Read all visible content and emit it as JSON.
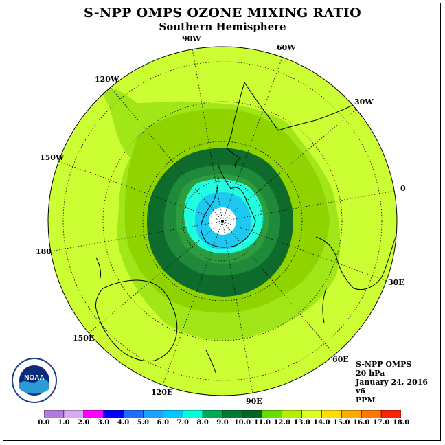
{
  "title": "S-NPP OMPS OZONE MIXING RATIO",
  "subtitle": "Southern Hemisphere",
  "longitude_labels": [
    {
      "text": "90W",
      "name": "lon-label-90w"
    },
    {
      "text": "60W",
      "name": "lon-label-60w"
    },
    {
      "text": "120W",
      "name": "lon-label-120w"
    },
    {
      "text": "30W",
      "name": "lon-label-30w"
    },
    {
      "text": "150W",
      "name": "lon-label-150w"
    },
    {
      "text": "0",
      "name": "lon-label-0"
    },
    {
      "text": "180",
      "name": "lon-label-180"
    },
    {
      "text": "30E",
      "name": "lon-label-30e"
    },
    {
      "text": "150E",
      "name": "lon-label-150e"
    },
    {
      "text": "60E",
      "name": "lon-label-60e"
    },
    {
      "text": "120E",
      "name": "lon-label-120e"
    },
    {
      "text": "90E",
      "name": "lon-label-90e"
    }
  ],
  "info": {
    "instrument": "S-NPP OMPS",
    "level": "20 hPa",
    "date": "January 24, 2016",
    "version": "v6",
    "units": "PPM"
  },
  "logo": {
    "text": "NOAA",
    "icon": "noaa-logo-icon"
  },
  "colorbar": {
    "labels": [
      "0.0",
      "1.0",
      "2.0",
      "3.0",
      "4.0",
      "5.0",
      "6.0",
      "7.0",
      "8.0",
      "9.0",
      "10.0",
      "11.0",
      "12.0",
      "13.0",
      "14.0",
      "15.0",
      "16.0",
      "17.0",
      "18.0"
    ],
    "colors": [
      "#b07ae0",
      "#d9a8f0",
      "#ff00ff",
      "#0000ff",
      "#1e6fff",
      "#1ea0ff",
      "#00c8ff",
      "#00ffd8",
      "#00aa55",
      "#007a33",
      "#006622",
      "#66dd00",
      "#b4ee00",
      "#ddff22",
      "#ffdd00",
      "#ffaa00",
      "#ff7700",
      "#ff2200",
      "#8b5a2b"
    ]
  },
  "map_colors": {
    "bg": "#ccff33",
    "c10": "#a0e619",
    "c9": "#8fd400",
    "c8": "#2c9e3f",
    "c7": "#1f8a3a",
    "c6": "#0e6b2c",
    "c5": "#00ddd0",
    "c4": "#1ec8f0",
    "c3": "#22ffe0",
    "center": "#ffffff"
  }
}
